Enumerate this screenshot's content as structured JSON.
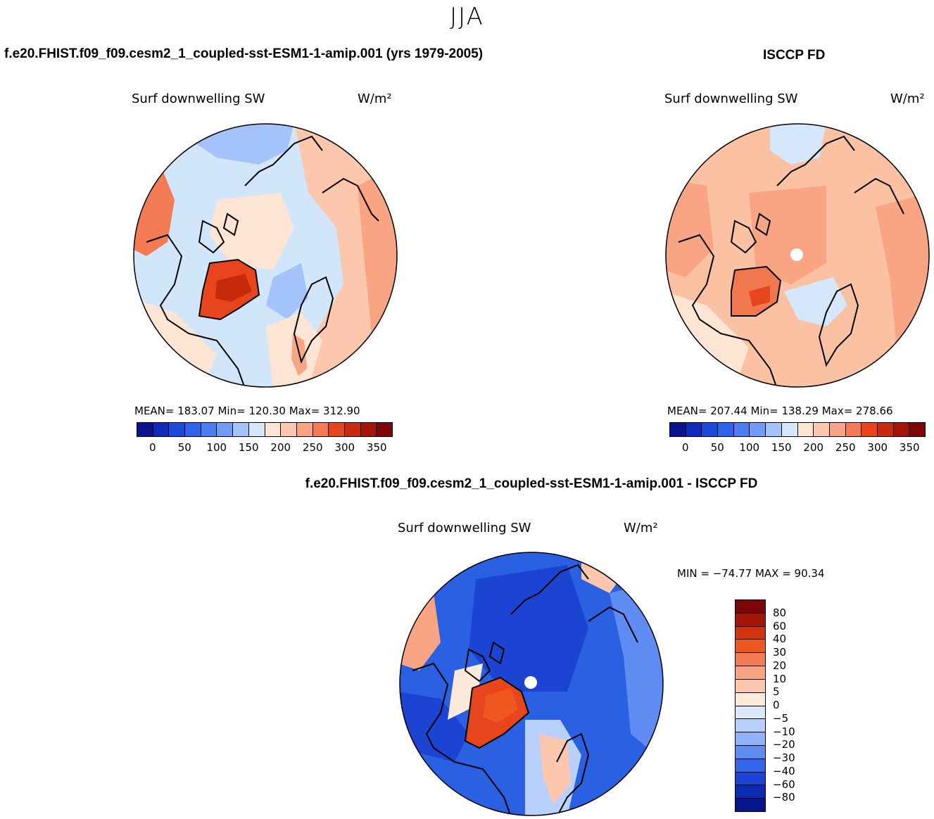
{
  "season": "JJA",
  "panels": {
    "model": {
      "case_title": "f.e20.FHIST.f09_f09.cesm2_1_coupled-sst-ESM1-1-amip.001 (yrs 1979-2005)",
      "var_title": "Surf downwelling SW",
      "units": "W/m²",
      "stats": "MEAN= 183.07   Min= 120.30   Max= 312.90",
      "background_color": "#d2e6fb",
      "greenland_color": "#e8451f"
    },
    "obs": {
      "case_title": "ISCCP FD",
      "var_title": "Surf downwelling SW",
      "units": "W/m²",
      "stats": "MEAN= 207.44   Min= 138.29   Max= 278.66",
      "background_color": "#fbc1a3",
      "greenland_color": "#f0774e"
    },
    "diff": {
      "case_title": "f.e20.FHIST.f09_f09.cesm2_1_coupled-sst-ESM1-1-amip.001 - ISCCP FD",
      "var_title": "Surf downwelling SW",
      "units": "W/m²",
      "minmax": "MIN = −74.77 MAX =  90.34",
      "background_color": "#2a60e2",
      "greenland_color": "#e8451f"
    }
  },
  "abs_colorbar": {
    "colors": [
      "#08138e",
      "#0f2bb9",
      "#1d48dc",
      "#2e63ee",
      "#4a7ff4",
      "#6f9cf7",
      "#a3c3fa",
      "#d4e7fd",
      "#fde4d3",
      "#fcc7ad",
      "#f9a482",
      "#f47b53",
      "#e8451f",
      "#c82a0e",
      "#a51409",
      "#7d0707"
    ],
    "ticks": [
      "0",
      "50",
      "100",
      "150",
      "200",
      "250",
      "300",
      "350"
    ]
  },
  "diff_colorbar": {
    "colors": [
      "#7d0707",
      "#a51409",
      "#d1330f",
      "#f0571f",
      "#f47b53",
      "#f9a482",
      "#fcc7ad",
      "#fdeadb",
      "#dce9fd",
      "#b8d0fb",
      "#8fb3f8",
      "#5f8cf3",
      "#3366ea",
      "#1b44d3",
      "#0d2bb1",
      "#07148a"
    ],
    "labels": [
      "80",
      "60",
      "40",
      "30",
      "20",
      "10",
      "5",
      "0",
      "−5",
      "−10",
      "−20",
      "−30",
      "−40",
      "−60",
      "−80"
    ]
  }
}
